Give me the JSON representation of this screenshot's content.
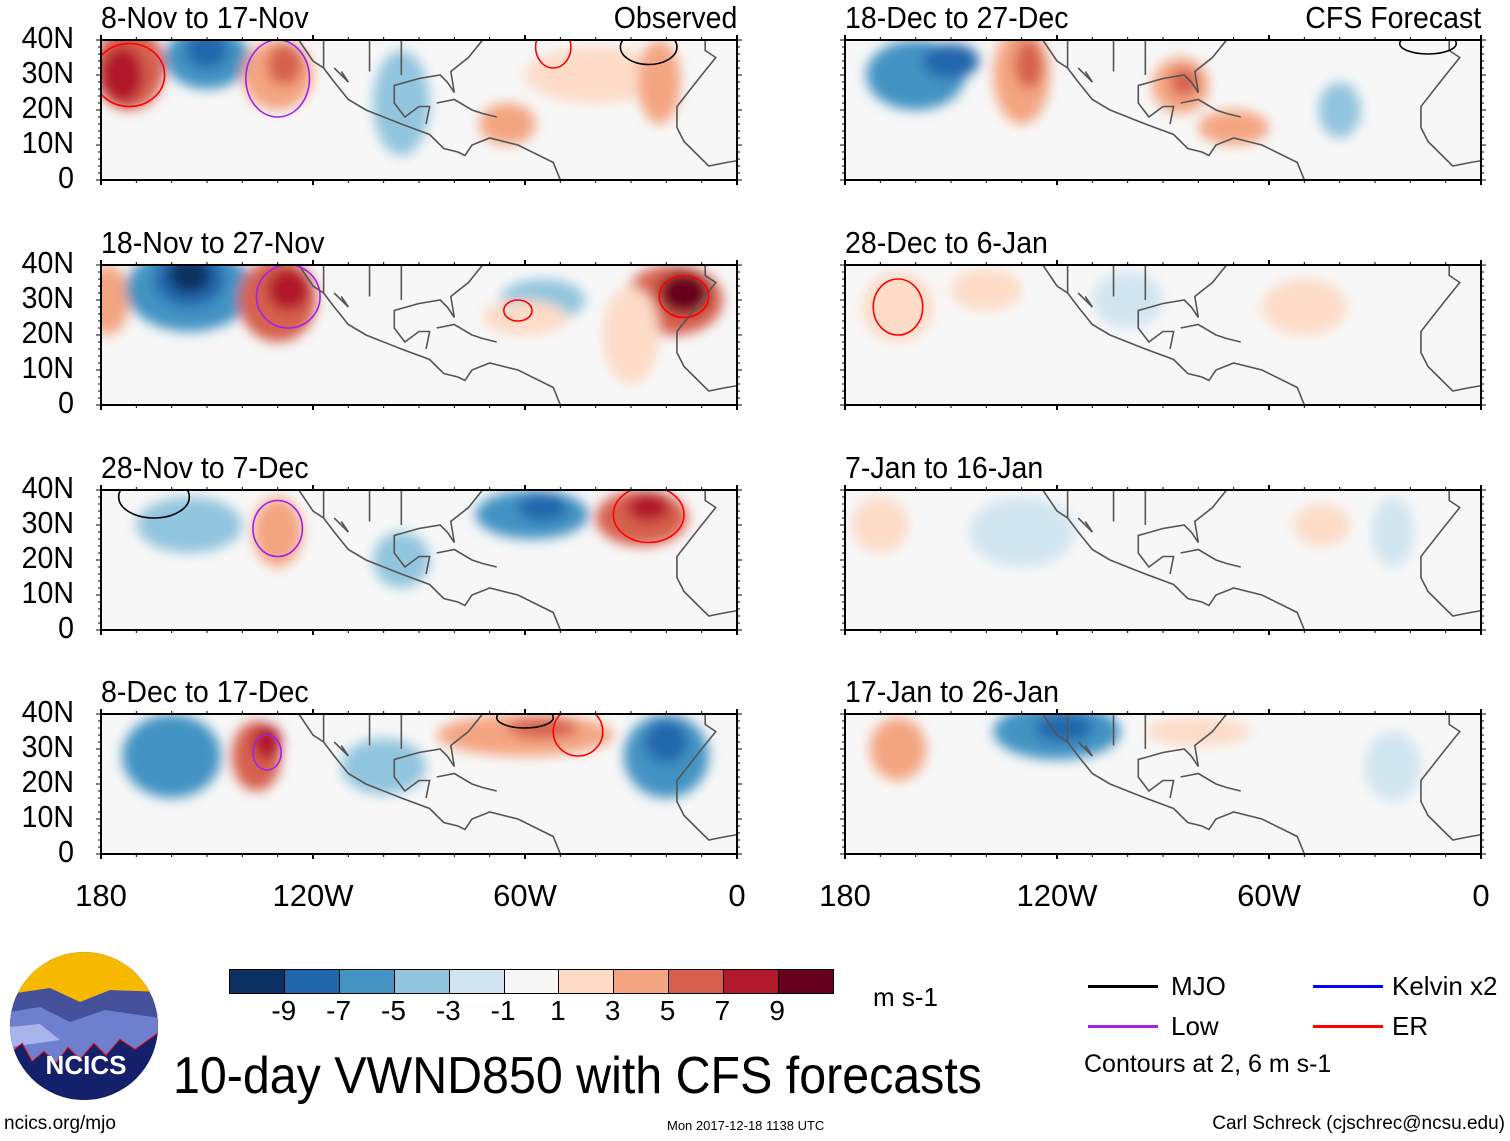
{
  "panels": {
    "left": [
      {
        "title": "8-Nov to 17-Nov",
        "corner": "Observed"
      },
      {
        "title": "18-Nov to 27-Nov",
        "corner": ""
      },
      {
        "title": "28-Nov to 7-Dec",
        "corner": ""
      },
      {
        "title": "8-Dec to 17-Dec",
        "corner": ""
      }
    ],
    "right": [
      {
        "title": "18-Dec to 27-Dec",
        "corner": "CFS Forecast"
      },
      {
        "title": "28-Dec to 6-Jan",
        "corner": ""
      },
      {
        "title": "7-Jan to 16-Jan",
        "corner": ""
      },
      {
        "title": "17-Jan to 26-Jan",
        "corner": ""
      }
    ]
  },
  "y_ticks": [
    "40N",
    "30N",
    "20N",
    "10N",
    "0"
  ],
  "x_ticks": [
    "180",
    "120W",
    "60W",
    "0"
  ],
  "colorbar": {
    "colors": [
      "#0b3061",
      "#2166ac",
      "#4393c3",
      "#92c5de",
      "#d1e5f0",
      "#f7f7f7",
      "#fddbc7",
      "#f4a582",
      "#d6604d",
      "#b2182b",
      "#67001f"
    ],
    "labels": [
      "-9",
      "-7",
      "-5",
      "-3",
      "-1",
      "1",
      "3",
      "5",
      "7",
      "9"
    ],
    "units": "m s-1"
  },
  "legend": {
    "items": [
      {
        "label": "MJO",
        "color": "#000000"
      },
      {
        "label": "Kelvin x2",
        "color": "#0000ff"
      },
      {
        "label": "Low",
        "color": "#a020f0"
      },
      {
        "label": "ER",
        "color": "#ff0000"
      }
    ],
    "contours_note": "Contours at 2, 6 m s-1"
  },
  "logo_text": "NCICS",
  "title": "10-day VWND850 with CFS forecasts",
  "footer": {
    "left": "ncics.org/mjo",
    "center": "Mon 2017-12-18 1138 UTC",
    "right": "Carl Schreck (cjschrec@ncsu.edu)"
  }
}
